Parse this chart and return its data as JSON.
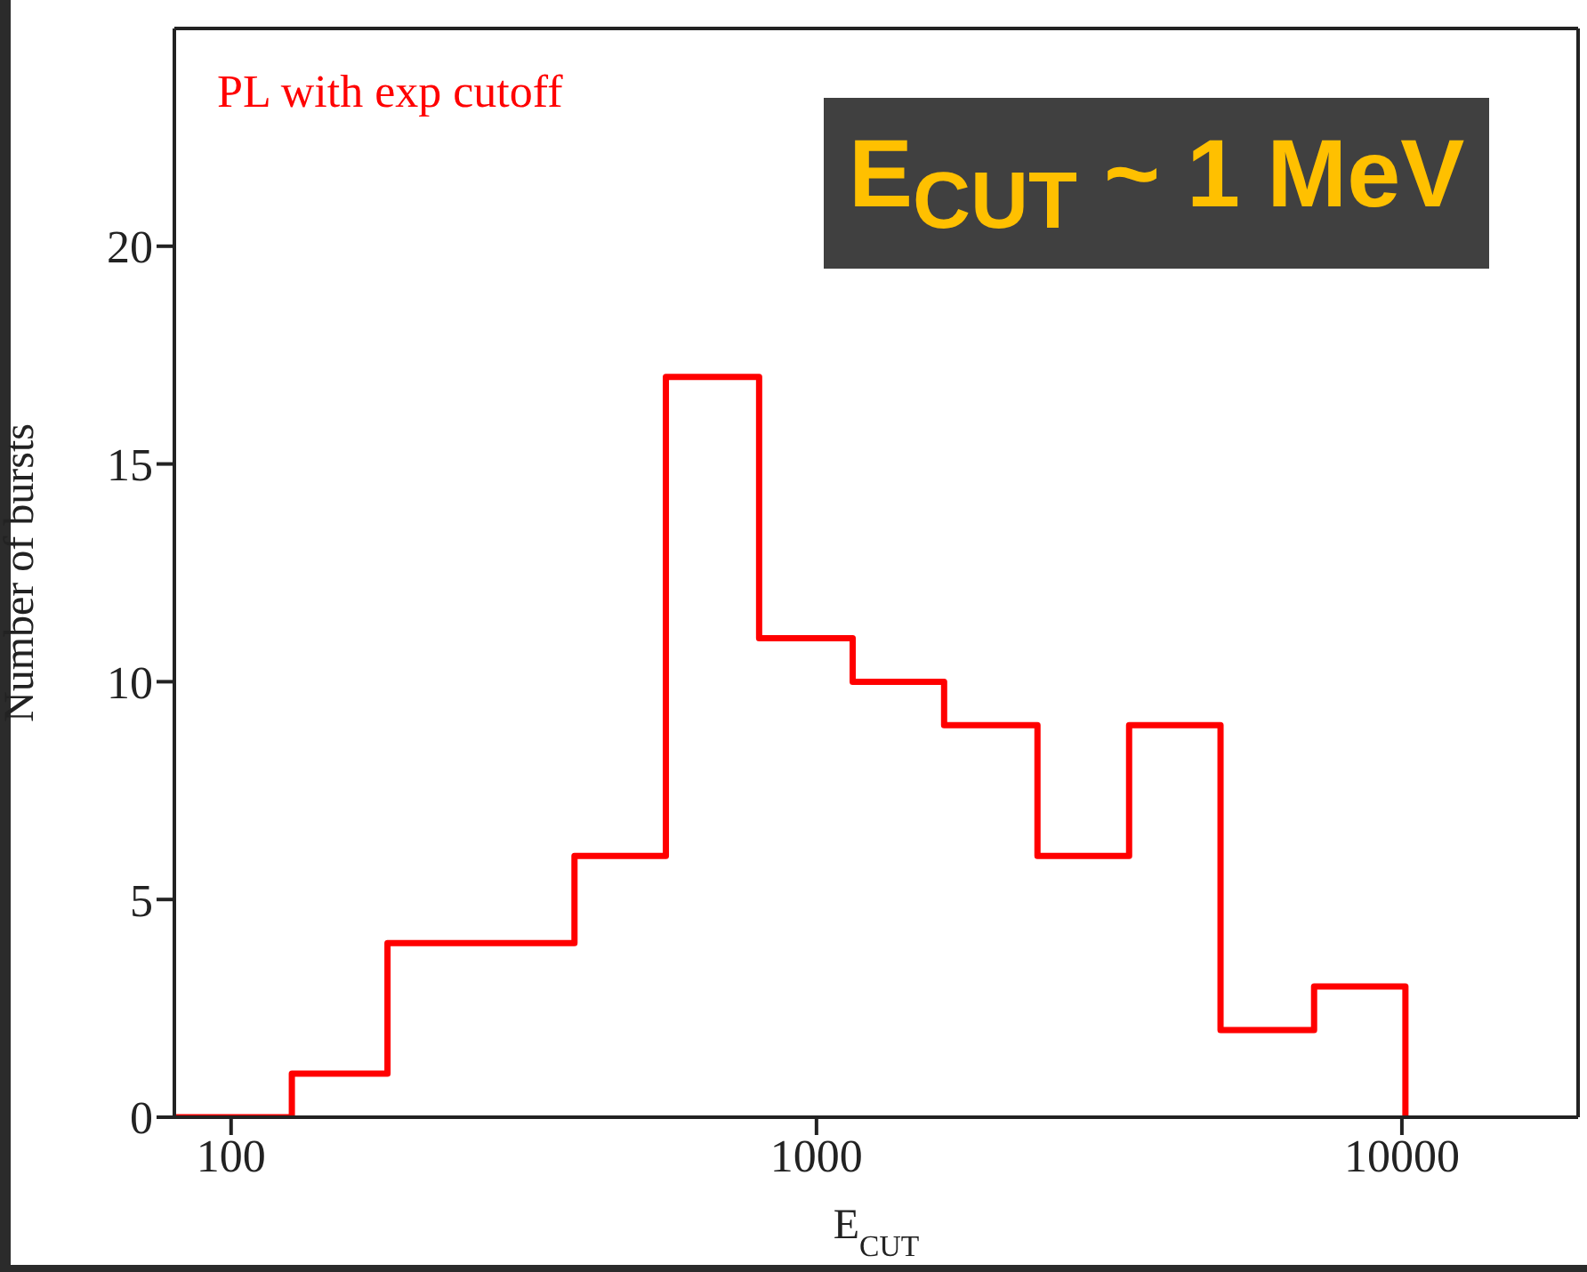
{
  "chart_data": {
    "type": "histogram",
    "xlabel": "E$_{CUT}$",
    "ylabel": "Number of bursts",
    "annotations": [
      "PL with exp cutoff",
      "E$_{CUT}$ ~ 1 MeV"
    ],
    "bins": [
      80,
      127,
      185,
      270,
      386,
      553,
      798,
      1153,
      1652,
      2385,
      3420,
      4900,
      7080,
      10140
    ],
    "values": [
      0,
      1,
      4,
      4,
      6,
      17,
      11,
      10,
      9,
      6,
      9,
      2,
      3
    ],
    "color": "#ff0000",
    "log": "x",
    "xlim": [
      80,
      20000
    ],
    "xticks": [
      100,
      1000,
      10000
    ],
    "ylim": [
      0,
      25
    ],
    "yticks": [
      0,
      5,
      10,
      15,
      20
    ]
  }
}
